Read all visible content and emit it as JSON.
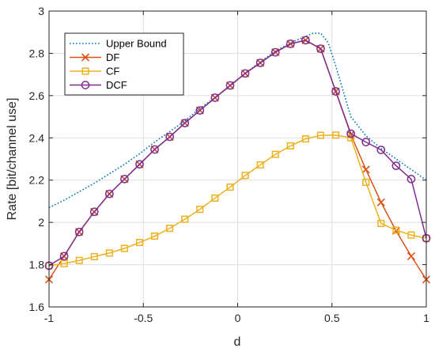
{
  "chart_data": {
    "type": "line",
    "title": "",
    "xlabel": "d",
    "ylabel": "Rate [bit/channel use]",
    "xlim": [
      -1,
      1
    ],
    "ylim": [
      1.6,
      3
    ],
    "xticks": [
      -1,
      -0.5,
      0,
      0.5,
      1
    ],
    "xtick_labels": [
      "-1",
      "-0.5",
      "0",
      "0.5",
      "1"
    ],
    "yticks": [
      1.6,
      1.8,
      2.0,
      2.2,
      2.4,
      2.6,
      2.8,
      3.0
    ],
    "ytick_labels": [
      "1.6",
      "1.8",
      "2",
      "2.2",
      "2.4",
      "2.6",
      "2.8",
      "3"
    ],
    "grid": true,
    "legend_position": "top-left",
    "series": [
      {
        "name": "Upper Bound",
        "color": "#0072BD",
        "style": "dotted",
        "marker": "none",
        "x": [
          -1,
          -0.92,
          -0.84,
          -0.76,
          -0.68,
          -0.6,
          -0.52,
          -0.44,
          -0.36,
          -0.28,
          -0.2,
          -0.12,
          -0.04,
          0.04,
          0.12,
          0.2,
          0.28,
          0.36,
          0.4,
          0.44,
          0.48,
          0.52,
          0.6,
          0.68,
          0.76,
          0.84,
          0.92,
          1.0
        ],
        "y": [
          2.07,
          2.105,
          2.145,
          2.185,
          2.23,
          2.275,
          2.325,
          2.38,
          2.43,
          2.48,
          2.54,
          2.59,
          2.645,
          2.705,
          2.76,
          2.81,
          2.85,
          2.88,
          2.895,
          2.895,
          2.85,
          2.74,
          2.5,
          2.41,
          2.35,
          2.3,
          2.25,
          2.2
        ]
      },
      {
        "name": "DF",
        "color": "#D95319",
        "style": "solid",
        "marker": "x",
        "x": [
          -1,
          -0.92,
          -0.84,
          -0.76,
          -0.68,
          -0.6,
          -0.52,
          -0.44,
          -0.36,
          -0.28,
          -0.2,
          -0.12,
          -0.04,
          0.04,
          0.12,
          0.2,
          0.28,
          0.36,
          0.44,
          0.52,
          0.6,
          0.68,
          0.76,
          0.84,
          0.92,
          1.0
        ],
        "y": [
          1.73,
          1.84,
          1.955,
          2.05,
          2.135,
          2.205,
          2.275,
          2.345,
          2.405,
          2.47,
          2.53,
          2.59,
          2.648,
          2.705,
          2.755,
          2.805,
          2.845,
          2.862,
          2.822,
          2.62,
          2.415,
          2.25,
          2.095,
          1.96,
          1.84,
          1.73
        ]
      },
      {
        "name": "CF",
        "color": "#EDB120",
        "style": "solid",
        "marker": "square",
        "x": [
          -1,
          -0.92,
          -0.84,
          -0.76,
          -0.68,
          -0.6,
          -0.52,
          -0.44,
          -0.36,
          -0.28,
          -0.2,
          -0.12,
          -0.04,
          0.04,
          0.12,
          0.2,
          0.28,
          0.36,
          0.44,
          0.52,
          0.6,
          0.68,
          0.76,
          0.84,
          0.92,
          1.0
        ],
        "y": [
          1.795,
          1.805,
          1.82,
          1.838,
          1.855,
          1.877,
          1.905,
          1.935,
          1.972,
          2.015,
          2.062,
          2.115,
          2.167,
          2.222,
          2.272,
          2.322,
          2.362,
          2.395,
          2.412,
          2.413,
          2.4,
          2.19,
          1.995,
          1.963,
          1.94,
          1.925
        ]
      },
      {
        "name": "DCF",
        "color": "#7E2F8E",
        "style": "solid",
        "marker": "circle",
        "x": [
          -1,
          -0.92,
          -0.84,
          -0.76,
          -0.68,
          -0.6,
          -0.52,
          -0.44,
          -0.36,
          -0.28,
          -0.2,
          -0.12,
          -0.04,
          0.04,
          0.12,
          0.2,
          0.28,
          0.36,
          0.44,
          0.52,
          0.6,
          0.68,
          0.76,
          0.84,
          0.92,
          1.0
        ],
        "y": [
          1.795,
          1.84,
          1.955,
          2.05,
          2.135,
          2.205,
          2.275,
          2.345,
          2.405,
          2.47,
          2.53,
          2.59,
          2.648,
          2.705,
          2.755,
          2.805,
          2.845,
          2.862,
          2.822,
          2.62,
          2.42,
          2.38,
          2.343,
          2.268,
          2.205,
          1.925
        ]
      }
    ]
  }
}
